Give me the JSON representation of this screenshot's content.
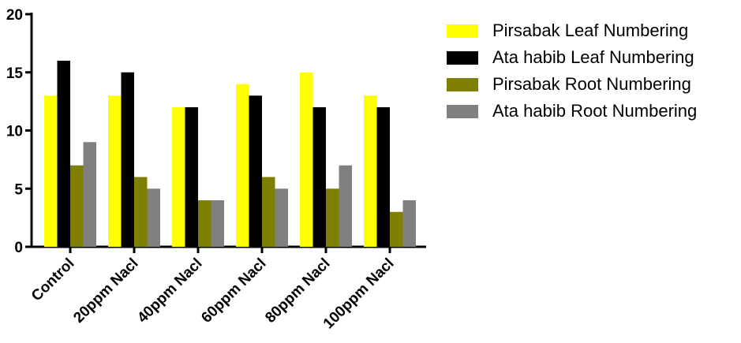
{
  "chart_data": {
    "type": "bar",
    "categories": [
      "Control",
      "20ppm Nacl",
      "40ppm Nacl",
      "60ppm Nacl",
      "80ppm Nacl",
      "100ppm Nacl"
    ],
    "series": [
      {
        "name": "Pirsabak Leaf Numbering",
        "color": "#ffff00",
        "values": [
          13,
          13,
          12,
          14,
          15,
          13
        ]
      },
      {
        "name": "Ata habib Leaf Numbering",
        "color": "#000000",
        "values": [
          16,
          15,
          12,
          13,
          12,
          12
        ]
      },
      {
        "name": "Pirsabak Root Numbering",
        "color": "#808000",
        "values": [
          7,
          6,
          4,
          6,
          5,
          3
        ]
      },
      {
        "name": "Ata habib Root Numbering",
        "color": "#808080",
        "values": [
          9,
          5,
          4,
          5,
          7,
          4
        ]
      }
    ],
    "yticks": [
      0,
      5,
      10,
      15,
      20
    ],
    "ylim": [
      0,
      20
    ],
    "grid": false,
    "legend_position": "right"
  }
}
